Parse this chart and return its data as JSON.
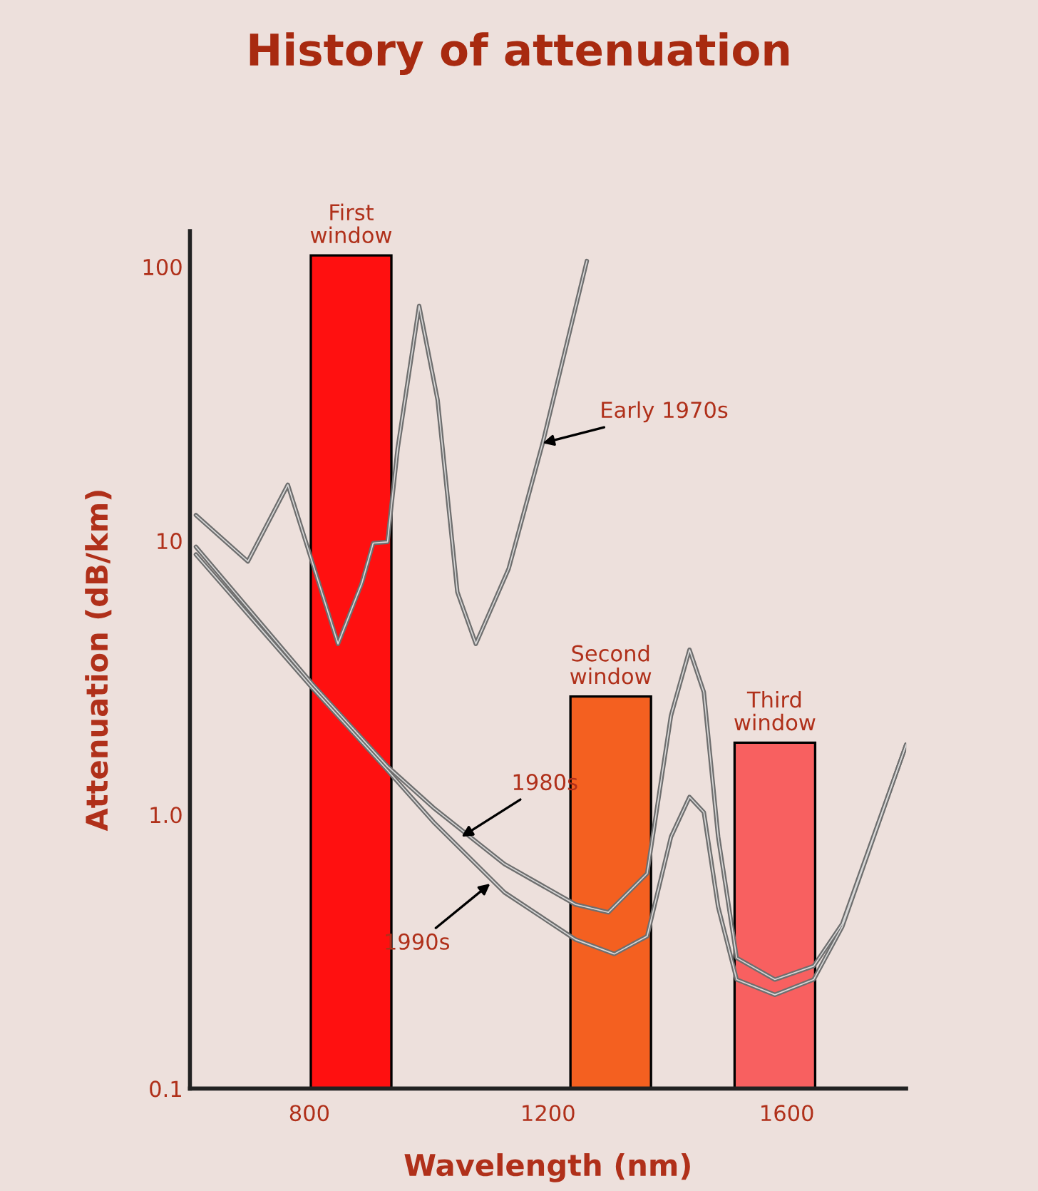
{
  "chart_data": {
    "type": "line",
    "title": "History of attenuation",
    "xlabel": "Wavelength (nm)",
    "ylabel": "Attenuation (dB/km)",
    "log": "y",
    "xlim": [
      600,
      1800
    ],
    "xticks": [
      800,
      1200,
      1600
    ],
    "ylim": [
      0.1,
      135
    ],
    "yticks": [
      0.1,
      {
        "value": 1,
        "label": "1.0"
      },
      10,
      100
    ],
    "grid": false,
    "legend": false,
    "marker": "none",
    "line_style": "solid",
    "series": [
      {
        "type": "bar",
        "x": [
          870,
          1305,
          1580
        ],
        "values": [
          110,
          2.7,
          1.83
        ],
        "colors": [
          "#ff1010",
          "#f46020",
          "#f86060"
        ]
      },
      {
        "color": "#6e6e6e",
        "x": [
          610,
          697,
          764,
          810,
          848,
          888,
          907,
          931,
          948,
          984,
          1015,
          1048,
          1079,
          1134,
          1191,
          1265
        ],
        "values": [
          12.4,
          8.4,
          16,
          7.7,
          4.2,
          7.0,
          9.8,
          9.9,
          21.7,
          72,
          32.6,
          6.5,
          4.2,
          7.9,
          22.7,
          105
        ]
      },
      {
        "color": "#6e6e6e",
        "x": [
          610,
          805,
          931,
          1008,
          1127,
          1246,
          1301,
          1366,
          1406,
          1437,
          1461,
          1485,
          1516,
          1580,
          1645,
          1693,
          1800
        ],
        "values": [
          9.5,
          3.0,
          1.5,
          1.06,
          0.66,
          0.47,
          0.44,
          0.61,
          2.3,
          4.0,
          2.8,
          0.83,
          0.3,
          0.25,
          0.28,
          0.4,
          1.8
        ]
      },
      {
        "color": "#6e6e6e",
        "x": [
          610,
          805,
          931,
          1008,
          1127,
          1246,
          1311,
          1366,
          1406,
          1437,
          1461,
          1485,
          1516,
          1580,
          1645,
          1693,
          1800
        ],
        "values": [
          8.9,
          2.9,
          1.45,
          0.94,
          0.52,
          0.35,
          0.31,
          0.36,
          0.83,
          1.16,
          1.02,
          0.46,
          0.25,
          0.22,
          0.25,
          0.39,
          1.8
        ]
      }
    ],
    "annotations": [
      {
        "text": "First\nwindow",
        "x": 870,
        "y": 110
      },
      {
        "text": "Second\nwindow",
        "x": 1305,
        "y": 2.7
      },
      {
        "text": "Third\nwindow",
        "x": 1580,
        "y": 1.83
      },
      {
        "text": "Early 1970s",
        "x": 1191,
        "y": 22.7
      },
      {
        "text": "1980s",
        "x": 1055,
        "y": 0.83
      },
      {
        "text": "1990s",
        "x": 1103,
        "y": 0.56
      }
    ]
  }
}
